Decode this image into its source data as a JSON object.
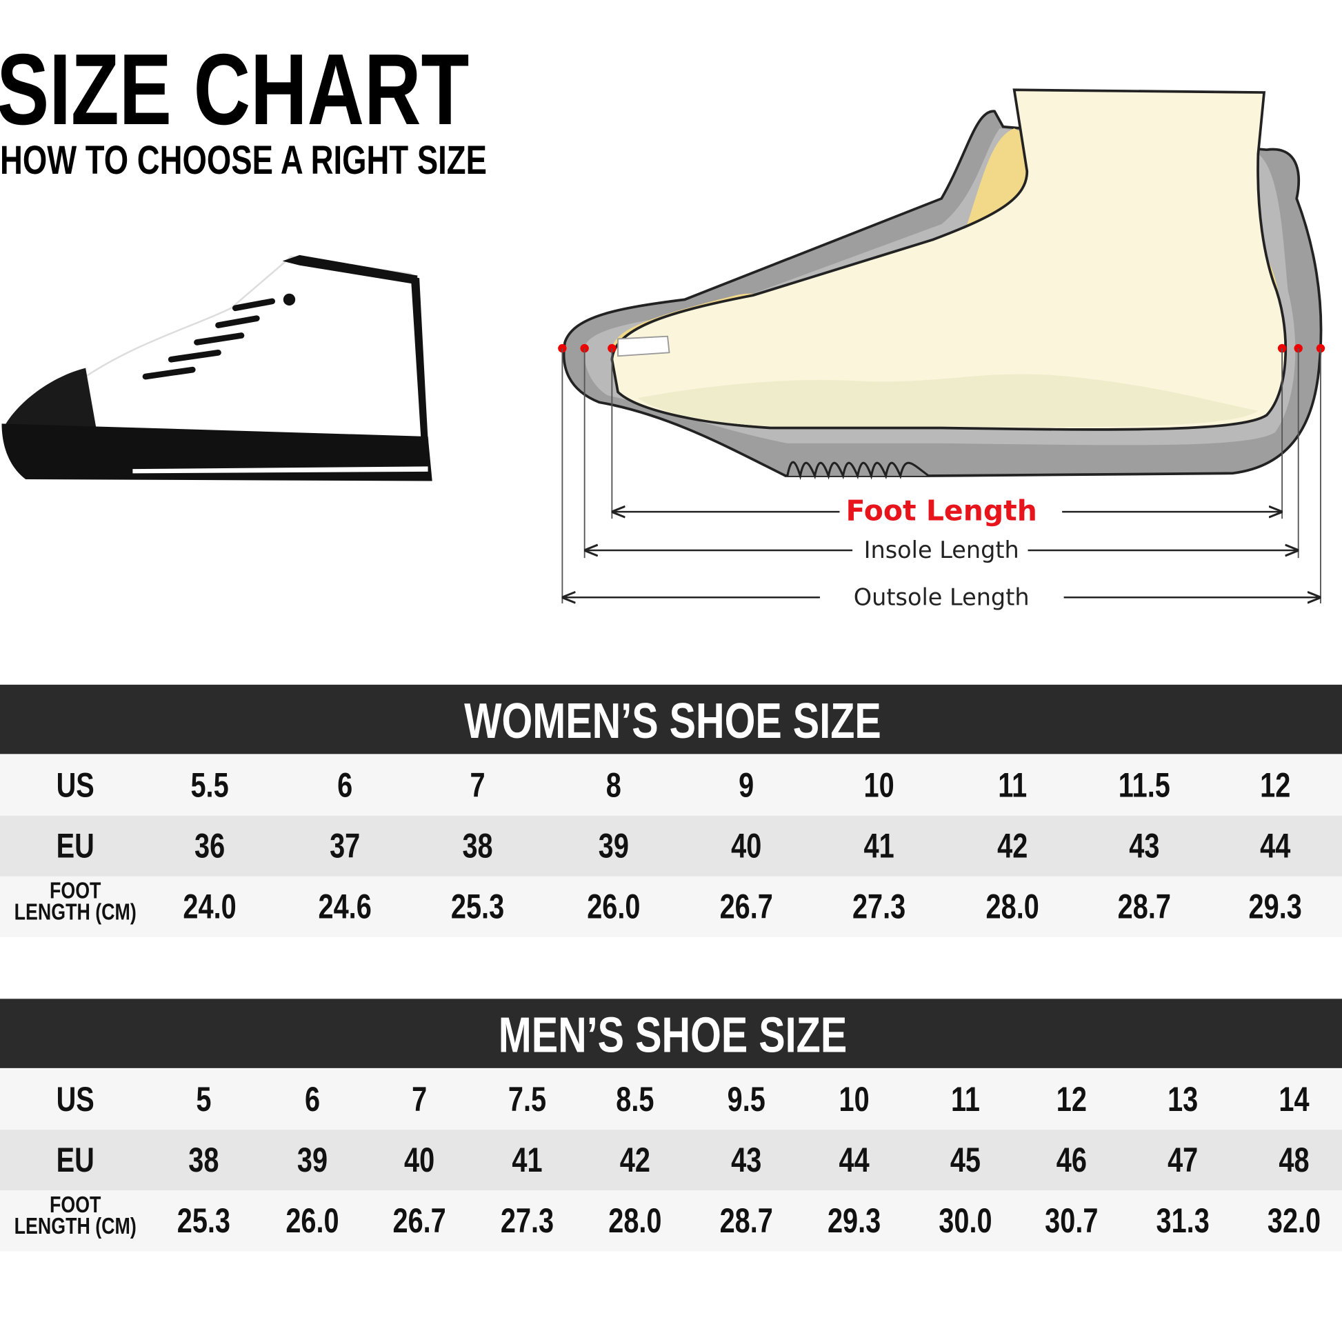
{
  "header": {
    "title": "SIZE CHART",
    "subtitle": "HOW TO CHOOSE A RIGHT SIZE"
  },
  "diagram": {
    "labels": [
      "Foot Length",
      "Insole Length",
      "Outsole Length"
    ]
  },
  "tables": [
    {
      "title": "WOMEN’S SHOE SIZE",
      "rows": [
        {
          "label": [
            "US"
          ],
          "cells": [
            "5.5",
            "6",
            "7",
            "8",
            "9",
            "10",
            "11",
            "11.5",
            "12"
          ]
        },
        {
          "label": [
            "EU"
          ],
          "cells": [
            "36",
            "37",
            "38",
            "39",
            "40",
            "41",
            "42",
            "43",
            "44"
          ]
        },
        {
          "label": [
            "FOOT",
            "LENGTH (CM)"
          ],
          "cells": [
            "24.0",
            "24.6",
            "25.3",
            "26.0",
            "26.7",
            "27.3",
            "28.0",
            "28.7",
            "29.3"
          ]
        }
      ]
    },
    {
      "title": "MEN’S SHOE SIZE",
      "rows": [
        {
          "label": [
            "US"
          ],
          "cells": [
            "5",
            "6",
            "7",
            "7.5",
            "8.5",
            "9.5",
            "10",
            "11",
            "12",
            "13",
            "14"
          ]
        },
        {
          "label": [
            "EU"
          ],
          "cells": [
            "38",
            "39",
            "40",
            "41",
            "42",
            "43",
            "44",
            "45",
            "46",
            "47",
            "48"
          ]
        },
        {
          "label": [
            "FOOT",
            "LENGTH (CM)"
          ],
          "cells": [
            "25.3",
            "26.0",
            "26.7",
            "27.3",
            "28.0",
            "28.7",
            "29.3",
            "30.0",
            "30.7",
            "31.3",
            "32.0"
          ]
        }
      ]
    }
  ]
}
